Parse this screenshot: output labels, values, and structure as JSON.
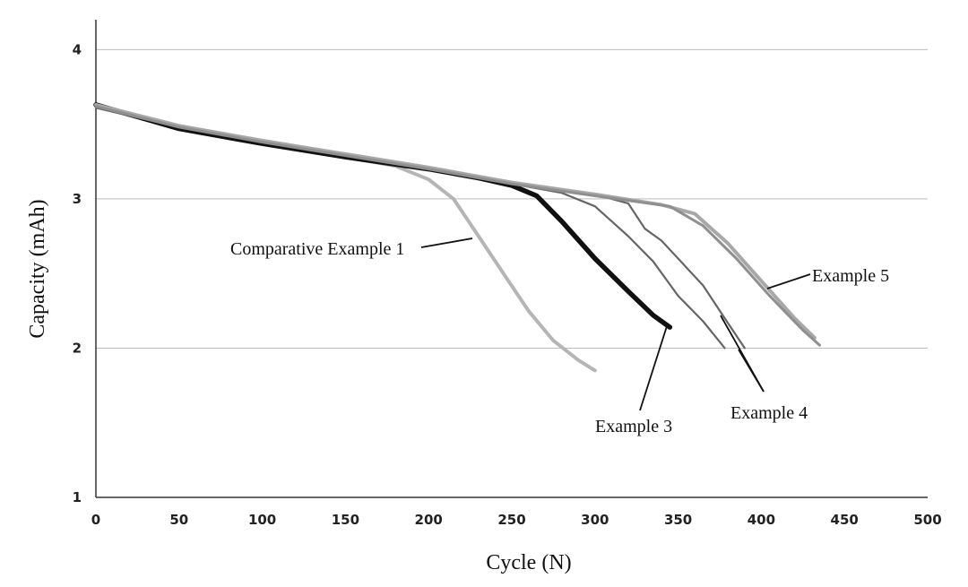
{
  "chart_data": {
    "type": "line",
    "title": "",
    "xlabel": "Cycle (N)",
    "ylabel": "Capacity (mAh)",
    "xlim": [
      0,
      500
    ],
    "ylim": [
      1,
      4.2
    ],
    "xticks": [
      0,
      50,
      100,
      150,
      200,
      250,
      300,
      350,
      400,
      450,
      500
    ],
    "yticks": [
      1,
      2,
      3,
      4
    ],
    "grid": "horizontal",
    "legend": "none",
    "series": [
      {
        "id": "comp1",
        "color": "#b5b5b5",
        "points": [
          [
            0,
            3.62
          ],
          [
            20,
            3.56
          ],
          [
            50,
            3.48
          ],
          [
            100,
            3.37
          ],
          [
            150,
            3.28
          ],
          [
            180,
            3.22
          ],
          [
            200,
            3.13
          ],
          [
            215,
            3.0
          ],
          [
            230,
            2.75
          ],
          [
            245,
            2.5
          ],
          [
            260,
            2.25
          ],
          [
            275,
            2.05
          ],
          [
            290,
            1.92
          ],
          [
            300,
            1.85
          ]
        ]
      },
      {
        "id": "ex3",
        "color": "#111111",
        "points": [
          [
            0,
            3.63
          ],
          [
            50,
            3.47
          ],
          [
            100,
            3.37
          ],
          [
            150,
            3.28
          ],
          [
            200,
            3.2
          ],
          [
            230,
            3.14
          ],
          [
            250,
            3.09
          ],
          [
            265,
            3.02
          ],
          [
            280,
            2.85
          ],
          [
            300,
            2.6
          ],
          [
            320,
            2.38
          ],
          [
            335,
            2.22
          ],
          [
            345,
            2.14
          ]
        ]
      },
      {
        "id": "ex4a",
        "color": "#666666",
        "points": [
          [
            0,
            3.62
          ],
          [
            50,
            3.48
          ],
          [
            100,
            3.38
          ],
          [
            150,
            3.29
          ],
          [
            200,
            3.2
          ],
          [
            250,
            3.1
          ],
          [
            280,
            3.04
          ],
          [
            300,
            2.95
          ],
          [
            320,
            2.75
          ],
          [
            335,
            2.58
          ],
          [
            350,
            2.35
          ],
          [
            365,
            2.18
          ],
          [
            378,
            2.0
          ]
        ]
      },
      {
        "id": "ex4b",
        "color": "#666666",
        "points": [
          [
            0,
            3.61
          ],
          [
            50,
            3.48
          ],
          [
            100,
            3.38
          ],
          [
            150,
            3.29
          ],
          [
            200,
            3.21
          ],
          [
            250,
            3.11
          ],
          [
            300,
            3.03
          ],
          [
            320,
            2.97
          ],
          [
            330,
            2.8
          ],
          [
            340,
            2.72
          ],
          [
            350,
            2.6
          ],
          [
            365,
            2.42
          ],
          [
            378,
            2.2
          ],
          [
            390,
            2.0
          ]
        ]
      },
      {
        "id": "ex5a",
        "color": "#a8a8a8",
        "points": [
          [
            0,
            3.63
          ],
          [
            50,
            3.49
          ],
          [
            100,
            3.39
          ],
          [
            150,
            3.3
          ],
          [
            200,
            3.21
          ],
          [
            250,
            3.11
          ],
          [
            300,
            3.03
          ],
          [
            340,
            2.96
          ],
          [
            360,
            2.9
          ],
          [
            380,
            2.7
          ],
          [
            400,
            2.45
          ],
          [
            420,
            2.2
          ],
          [
            432,
            2.07
          ]
        ]
      },
      {
        "id": "ex5b",
        "color": "#8f8f8f",
        "points": [
          [
            0,
            3.62
          ],
          [
            50,
            3.48
          ],
          [
            100,
            3.38
          ],
          [
            150,
            3.29
          ],
          [
            200,
            3.2
          ],
          [
            250,
            3.1
          ],
          [
            300,
            3.02
          ],
          [
            345,
            2.95
          ],
          [
            365,
            2.82
          ],
          [
            385,
            2.6
          ],
          [
            405,
            2.35
          ],
          [
            425,
            2.12
          ],
          [
            435,
            2.02
          ]
        ]
      }
    ],
    "annotations": [
      {
        "id": "annot-comp1",
        "text": "Comparative Example 1"
      },
      {
        "id": "annot-ex3",
        "text": "Example 3"
      },
      {
        "id": "annot-ex4",
        "text": "Example 4"
      },
      {
        "id": "annot-ex5",
        "text": "Example 5"
      }
    ]
  }
}
